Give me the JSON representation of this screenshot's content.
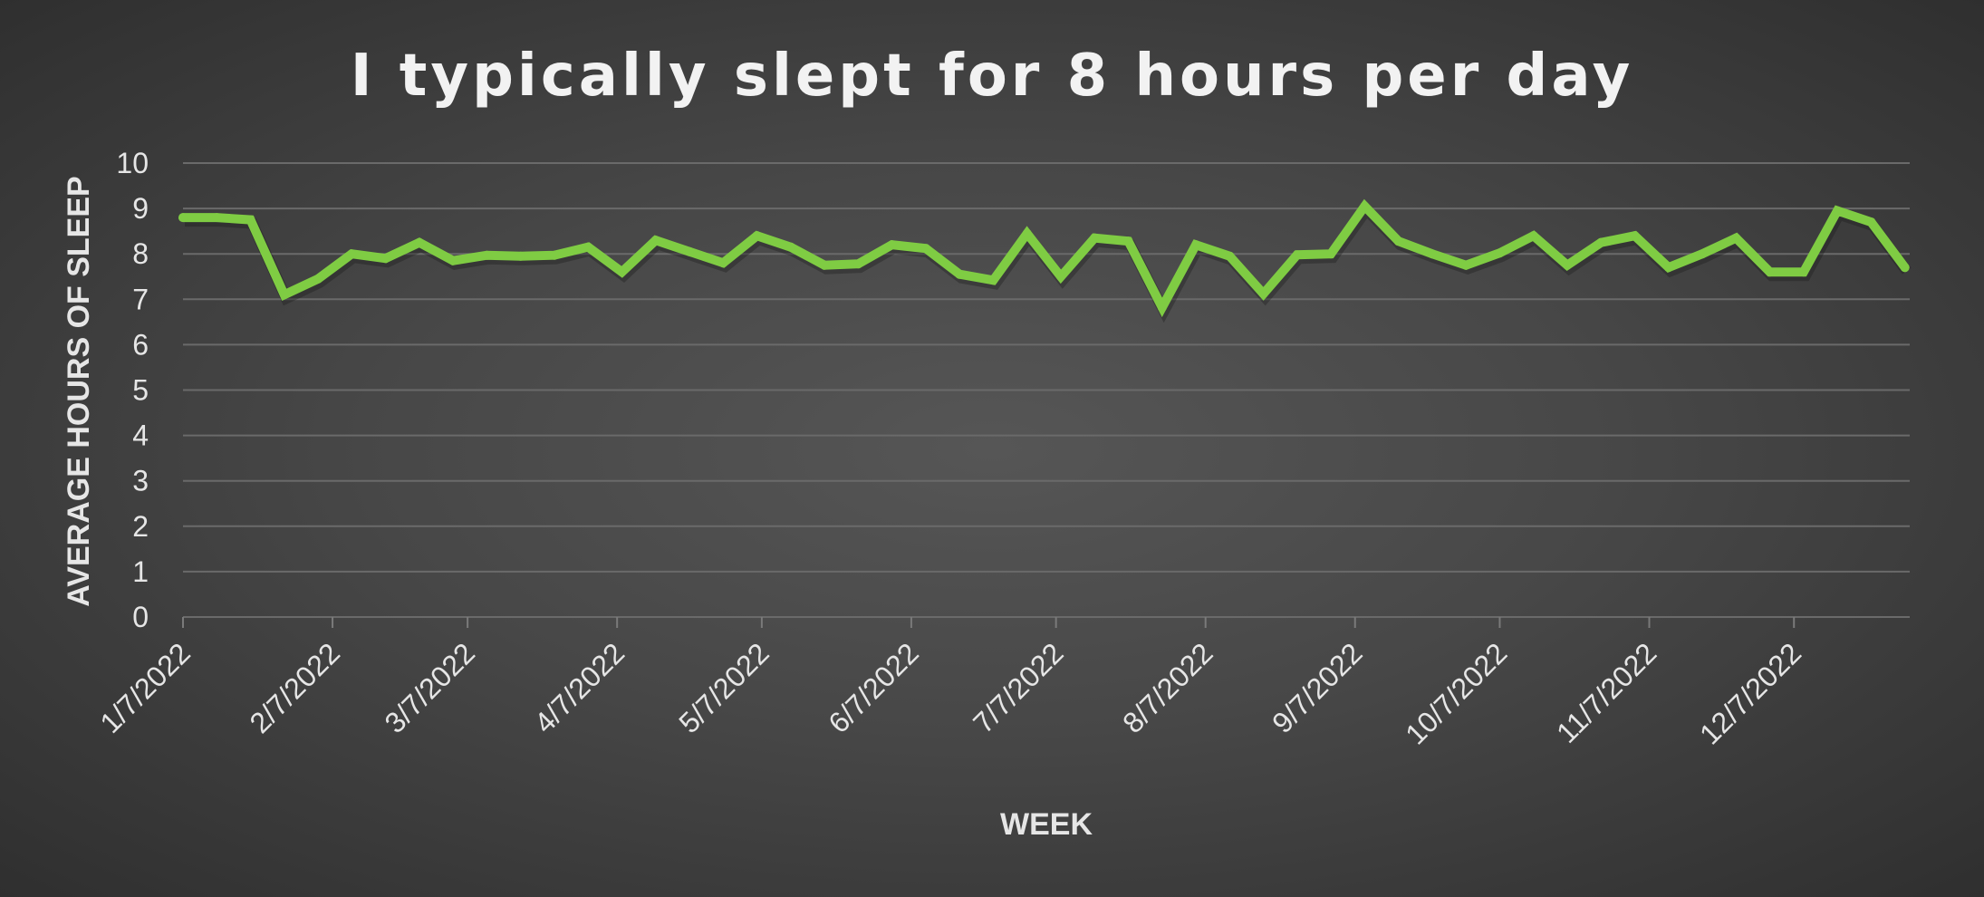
{
  "chart_data": {
    "type": "line",
    "title": "I typically slept for 8 hours per day",
    "xlabel": "WEEK",
    "ylabel": "AVERAGE HOURS OF SLEEP",
    "ylim": [
      0,
      10
    ],
    "yticks": [
      "0",
      "1",
      "2",
      "3",
      "4",
      "5",
      "6",
      "7",
      "8",
      "9",
      "10"
    ],
    "xlim": [
      "2022-01-07",
      "2022-12-31"
    ],
    "xtick_labels": [
      "1/7/2022",
      "2/7/2022",
      "3/7/2022",
      "4/7/2022",
      "5/7/2022",
      "6/7/2022",
      "7/7/2022",
      "8/7/2022",
      "9/7/2022",
      "10/7/2022",
      "11/7/2022",
      "12/7/2022"
    ],
    "xtick_dates": [
      "2022-01-07",
      "2022-02-07",
      "2022-03-07",
      "2022-04-07",
      "2022-05-07",
      "2022-06-07",
      "2022-07-07",
      "2022-08-07",
      "2022-09-07",
      "2022-10-07",
      "2022-11-07",
      "2022-12-07"
    ],
    "grid": true,
    "legend": "none",
    "series": [
      {
        "color": "#7fcc43",
        "x": [
          "2022-01-07",
          "2022-01-14",
          "2022-01-21",
          "2022-01-28",
          "2022-02-04",
          "2022-02-11",
          "2022-02-18",
          "2022-02-25",
          "2022-03-04",
          "2022-03-11",
          "2022-03-18",
          "2022-03-25",
          "2022-04-01",
          "2022-04-08",
          "2022-04-15",
          "2022-04-22",
          "2022-04-29",
          "2022-05-06",
          "2022-05-13",
          "2022-05-20",
          "2022-05-27",
          "2022-06-03",
          "2022-06-10",
          "2022-06-17",
          "2022-06-24",
          "2022-07-01",
          "2022-07-08",
          "2022-07-15",
          "2022-07-22",
          "2022-07-29",
          "2022-08-05",
          "2022-08-12",
          "2022-08-19",
          "2022-08-26",
          "2022-09-02",
          "2022-09-09",
          "2022-09-16",
          "2022-09-23",
          "2022-09-30",
          "2022-10-07",
          "2022-10-14",
          "2022-10-21",
          "2022-10-28",
          "2022-11-04",
          "2022-11-11",
          "2022-11-18",
          "2022-11-25",
          "2022-12-02",
          "2022-12-09",
          "2022-12-16",
          "2022-12-23",
          "2022-12-30"
        ],
        "y": [
          8.8,
          8.8,
          8.75,
          7.1,
          7.45,
          8.0,
          7.9,
          8.25,
          7.85,
          7.97,
          7.95,
          7.97,
          8.15,
          7.6,
          8.3,
          8.05,
          7.8,
          8.4,
          8.15,
          7.75,
          7.78,
          8.2,
          8.12,
          7.55,
          7.42,
          8.45,
          7.5,
          8.35,
          8.28,
          6.82,
          8.2,
          7.95,
          7.12,
          7.98,
          8.0,
          9.05,
          8.28,
          8.0,
          7.75,
          8.02,
          8.4,
          7.75,
          8.25,
          8.4,
          7.7,
          8.0,
          8.35,
          7.6,
          7.6,
          8.95,
          8.7,
          7.7
        ]
      }
    ]
  }
}
